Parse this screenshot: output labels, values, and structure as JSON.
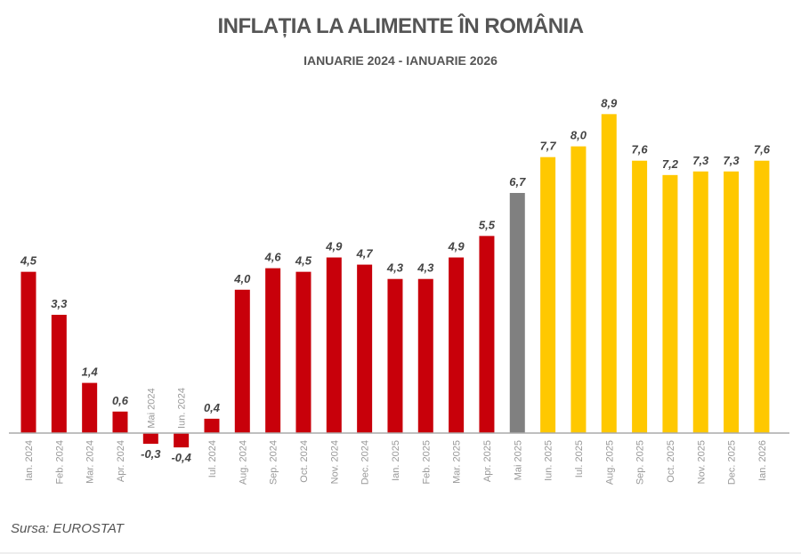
{
  "chart_data": {
    "type": "bar",
    "title": "INFLAȚIA LA ALIMENTE ÎN ROMÂNIA",
    "subtitle": "IANUARIE 2024 - IANUARIE 2026",
    "source": "Sursa: EUROSTAT",
    "categories": [
      "Ian. 2024",
      "Feb. 2024",
      "Mar. 2024",
      "Apr. 2024",
      "Mai 2024",
      "Iun. 2024",
      "Iul. 2024",
      "Aug. 2024",
      "Sep. 2024",
      "Oct. 2024",
      "Nov. 2024",
      "Dec. 2024",
      "Ian. 2025",
      "Feb. 2025",
      "Mar. 2025",
      "Apr. 2025",
      "Mai 2025",
      "Iun. 2025",
      "Iul. 2025",
      "Aug. 2025",
      "Sep. 2025",
      "Oct. 2025",
      "Nov. 2025",
      "Dec. 2025",
      "Ian. 2026"
    ],
    "values": [
      4.5,
      3.3,
      1.4,
      0.6,
      -0.3,
      -0.4,
      0.4,
      4.0,
      4.6,
      4.5,
      4.9,
      4.7,
      4.3,
      4.3,
      4.9,
      5.5,
      6.7,
      7.7,
      8.0,
      8.9,
      7.6,
      7.2,
      7.3,
      7.3,
      7.6
    ],
    "data_labels": [
      "4,5",
      "3,3",
      "1,4",
      "0,6",
      "-0,3",
      "-0,4",
      "0,4",
      "4,0",
      "4,6",
      "4,5",
      "4,9",
      "4,7",
      "4,3",
      "4,3",
      "4,9",
      "5,5",
      "6,7",
      "7,7",
      "8,0",
      "8,9",
      "7,6",
      "7,2",
      "7,3",
      "7,3",
      "7,6"
    ],
    "bar_colors": [
      "#c8000a",
      "#c8000a",
      "#c8000a",
      "#c8000a",
      "#c8000a",
      "#c8000a",
      "#c8000a",
      "#c8000a",
      "#c8000a",
      "#c8000a",
      "#c8000a",
      "#c8000a",
      "#c8000a",
      "#c8000a",
      "#c8000a",
      "#c8000a",
      "#808080",
      "#ffc800",
      "#ffc800",
      "#ffc800",
      "#ffc800",
      "#ffc800",
      "#ffc800",
      "#ffc800",
      "#ffc800"
    ],
    "xlabel": "",
    "ylabel": "",
    "ylim": [
      -0.5,
      9.5
    ],
    "grid": false,
    "legend": "none"
  }
}
